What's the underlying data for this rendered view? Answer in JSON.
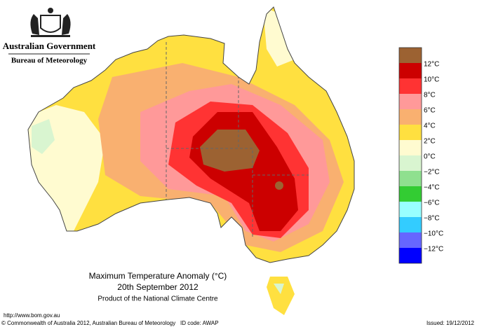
{
  "header": {
    "government": "Australian Government",
    "bureau": "Bureau of Meteorology"
  },
  "legend": {
    "colors": [
      "#9c6232",
      "#cc0000",
      "#ff3333",
      "#ff9999",
      "#f9b070",
      "#ffe040",
      "#fffbd0",
      "#d9f5d0",
      "#8fe08f",
      "#33cc33",
      "#99ffff",
      "#33ccff",
      "#6666ff",
      "#0000ff"
    ],
    "labels": [
      "12°C",
      "10°C",
      "8°C",
      "6°C",
      "4°C",
      "2°C",
      "0°C",
      "−2°C",
      "−4°C",
      "−6°C",
      "−8°C",
      "−10°C",
      "−12°C"
    ]
  },
  "caption": {
    "title": "Maximum Temperature Anomaly (°C)",
    "date": "20th September 2012",
    "product": "Product of the National Climate Centre"
  },
  "footer": {
    "url": "http://www.bom.gov.au",
    "copyright": "© Commonwealth of Australia 2012, Australian Bureau of Meteorology",
    "id": "ID code: AWAP",
    "issued": "Issued: 19/12/2012"
  }
}
